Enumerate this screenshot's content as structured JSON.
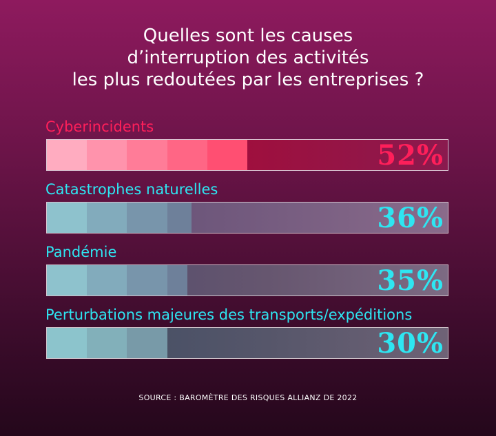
{
  "chart_data": {
    "type": "bar",
    "title_lines": [
      "Quelles sont les causes",
      "d’interruption des activités",
      "les plus redoutées par les entreprises ?"
    ],
    "categories": [
      "Cyberincidents",
      "Catastrophes naturelles",
      "Pandémie",
      "Perturbations majeures des transports/expéditions"
    ],
    "values": [
      52,
      36,
      35,
      30
    ],
    "value_labels": [
      "52%",
      "36%",
      "35%",
      "30%"
    ],
    "unit": "%",
    "xlim": [
      0,
      100
    ],
    "orientation": "horizontal",
    "grid": false
  },
  "source": "SOURCE : BAROMÈTRE DES RISQUES ALLIANZ DE 2022",
  "colors": {
    "highlight": "#ff1f5a",
    "accent": "#2ee6f2",
    "title": "#ffffff"
  }
}
